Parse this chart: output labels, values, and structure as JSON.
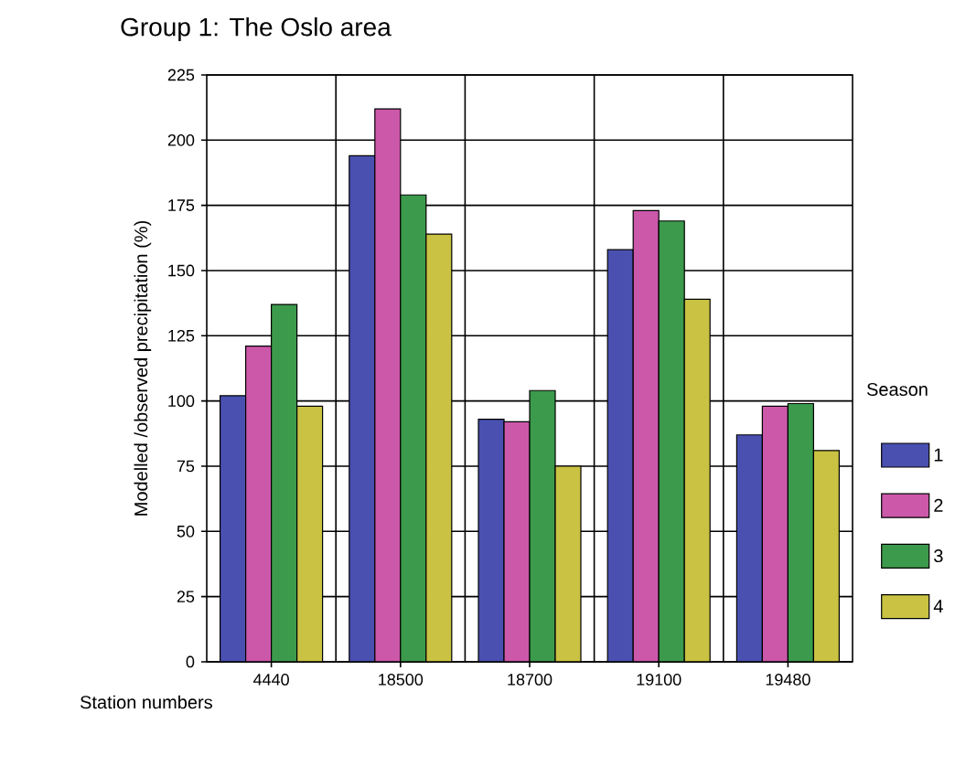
{
  "chart_data": {
    "type": "bar",
    "title": "Group 1: The Oslo area",
    "xlabel": "Station numbers",
    "ylabel": "Modelled /observed precipitation (%)",
    "legend_title": "Season",
    "categories": [
      "4440",
      "18500",
      "18700",
      "19100",
      "19480"
    ],
    "series": [
      {
        "name": "1",
        "color": "#4a50b0",
        "values": [
          102,
          194,
          93,
          158,
          87
        ]
      },
      {
        "name": "2",
        "color": "#cc58aa",
        "values": [
          121,
          212,
          92,
          173,
          98
        ]
      },
      {
        "name": "3",
        "color": "#3c9a4c",
        "values": [
          137,
          179,
          104,
          169,
          99
        ]
      },
      {
        "name": "4",
        "color": "#c9c243",
        "values": [
          98,
          164,
          75,
          139,
          81
        ]
      }
    ],
    "ylim": [
      0,
      225
    ],
    "yticks": [
      0,
      25,
      50,
      75,
      100,
      125,
      150,
      175,
      200,
      225
    ],
    "grid": true,
    "legend": "right"
  }
}
